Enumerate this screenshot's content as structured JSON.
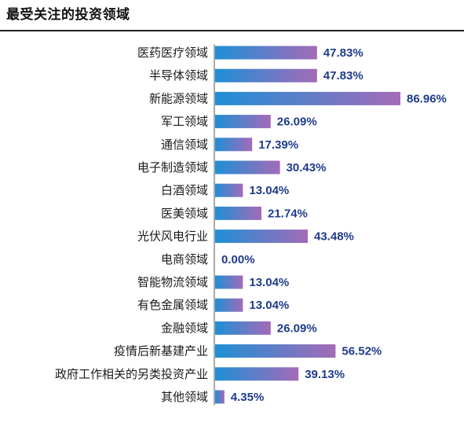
{
  "title": "最受关注的投资领域",
  "chart_data": {
    "type": "bar",
    "orientation": "horizontal",
    "title": "最受关注的投资领域",
    "categories": [
      "医药医疗领域",
      "半导体领域",
      "新能源领域",
      "军工领域",
      "通信领域",
      "电子制造领域",
      "白酒领域",
      "医美领域",
      "光伏风电行业",
      "电商领域",
      "智能物流领域",
      "有色金属领域",
      "金融领域",
      "疫情后新基建产业",
      "政府工作相关的另类投资产业",
      "其他领域"
    ],
    "values": [
      47.83,
      47.83,
      86.96,
      26.09,
      17.39,
      30.43,
      13.04,
      21.74,
      43.48,
      0.0,
      13.04,
      13.04,
      26.09,
      56.52,
      39.13,
      4.35
    ],
    "value_labels": [
      "47.83%",
      "47.83%",
      "86.96%",
      "26.09%",
      "17.39%",
      "30.43%",
      "13.04%",
      "21.74%",
      "43.48%",
      "0.00%",
      "13.04%",
      "13.04%",
      "26.09%",
      "56.52%",
      "39.13%",
      "4.35%"
    ],
    "xlabel": "",
    "ylabel": "",
    "xlim": [
      0,
      86.96
    ],
    "grid": false,
    "legend": "none",
    "colors": {
      "bar_gradient_start": "#1e8fd6",
      "bar_gradient_end": "#a46ab8",
      "value_text": "#1f3c8c",
      "category_text": "#1a1a1a",
      "axis_line": "#555555"
    }
  }
}
